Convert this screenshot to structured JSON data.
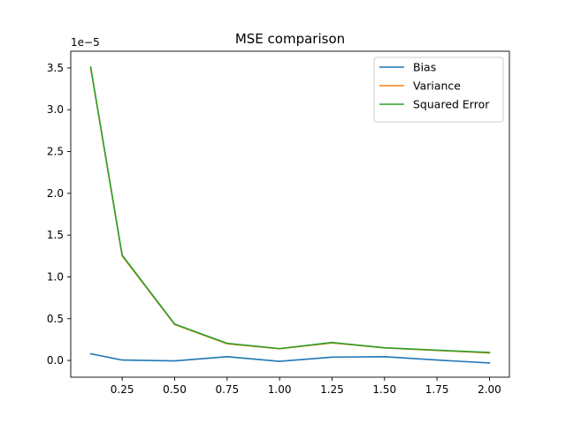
{
  "chart_data": {
    "type": "line",
    "title": "MSE comparison",
    "xlabel": "",
    "ylabel": "",
    "y_offset_label": "1e−5",
    "y_scale_factor": 1e-05,
    "x": [
      0.1,
      0.25,
      0.5,
      0.75,
      1.0,
      1.25,
      1.5,
      1.75,
      2.0
    ],
    "xlim": [
      0.005,
      2.095
    ],
    "ylim": [
      -0.2,
      3.7
    ],
    "xticks": [
      0.25,
      0.5,
      0.75,
      1.0,
      1.25,
      1.5,
      1.75,
      2.0
    ],
    "xtick_labels": [
      "0.25",
      "0.50",
      "0.75",
      "1.00",
      "1.25",
      "1.50",
      "1.75",
      "2.00"
    ],
    "yticks": [
      0.0,
      0.5,
      1.0,
      1.5,
      2.0,
      2.5,
      3.0,
      3.5
    ],
    "ytick_labels": [
      "0.0",
      "0.5",
      "1.0",
      "1.5",
      "2.0",
      "2.5",
      "3.0",
      "3.5"
    ],
    "grid": false,
    "legend_position": "top-right",
    "series": [
      {
        "name": "Bias",
        "color": "#1f77b4",
        "values": [
          0.08,
          0.005,
          -0.005,
          0.045,
          -0.01,
          0.04,
          0.045,
          0.005,
          -0.03
        ]
      },
      {
        "name": "Variance",
        "color": "#ff7f0e",
        "values": [
          3.5,
          1.25,
          0.43,
          0.2,
          0.14,
          0.21,
          0.15,
          0.12,
          0.09
        ]
      },
      {
        "name": "Squared Error",
        "color": "#2ca02c",
        "values": [
          3.51,
          1.26,
          0.435,
          0.205,
          0.142,
          0.215,
          0.152,
          0.123,
          0.096
        ]
      }
    ]
  }
}
